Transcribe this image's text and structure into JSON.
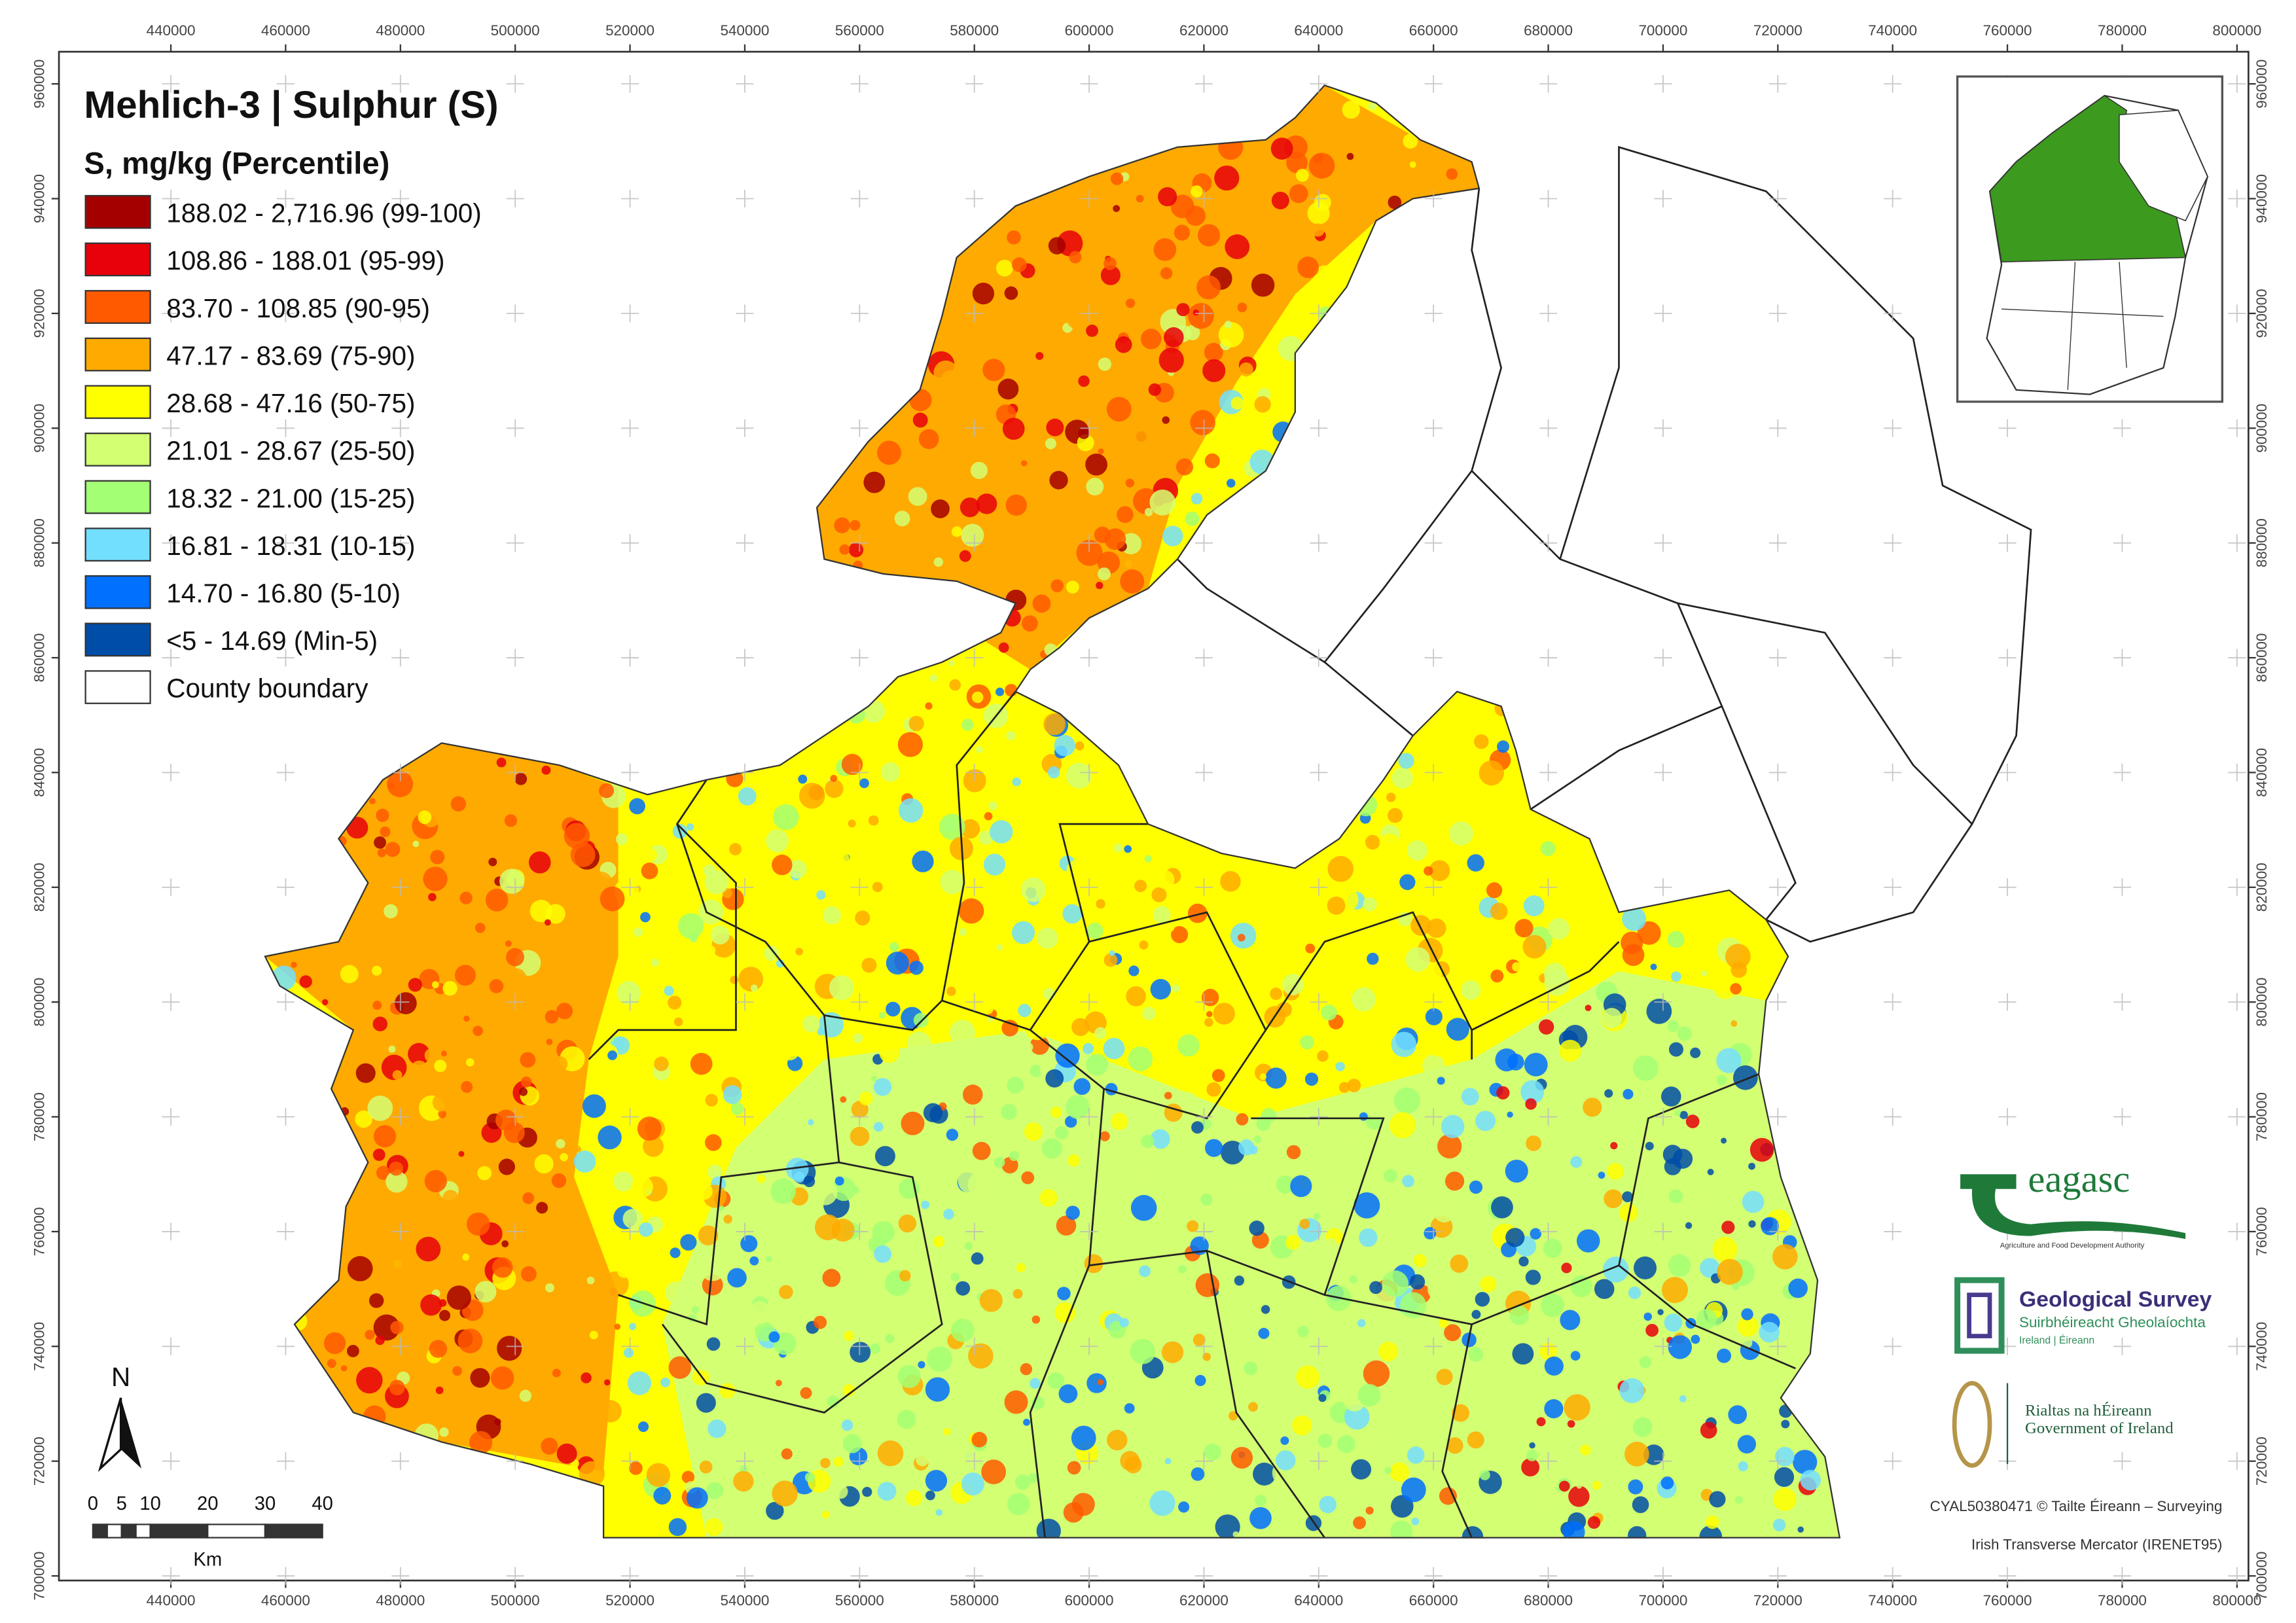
{
  "map": {
    "title": "Mehlich-3 | Sulphur (S)",
    "legend": {
      "title": "S, mg/kg (Percentile)",
      "items": [
        {
          "label": "188.02 - 2,716.96 (99-100)",
          "color": "#a50000"
        },
        {
          "label": "108.86 - 188.01 (95-99)",
          "color": "#e8000b"
        },
        {
          "label": "83.70 - 108.85 (90-95)",
          "color": "#ff5a00"
        },
        {
          "label": "47.17 - 83.69 (75-90)",
          "color": "#ffaa00"
        },
        {
          "label": "28.68 - 47.16 (50-75)",
          "color": "#ffff00"
        },
        {
          "label": "21.01 - 28.67 (25-50)",
          "color": "#d3ff73"
        },
        {
          "label": "18.32 - 21.00 (15-25)",
          "color": "#a3ff73"
        },
        {
          "label": "16.81 - 18.31 (10-15)",
          "color": "#73dfff"
        },
        {
          "label": "14.70 - 16.80 (5-10)",
          "color": "#0070ff"
        },
        {
          "label": "<5 - 14.69 (Min-5)",
          "color": "#004da8"
        },
        {
          "label": "County boundary",
          "color": "#ffffff"
        }
      ]
    },
    "xlim": [
      420500,
      802000
    ],
    "ylim": [
      699200,
      965600
    ],
    "x_ticks": [
      440000,
      460000,
      480000,
      500000,
      520000,
      540000,
      560000,
      580000,
      600000,
      620000,
      640000,
      660000,
      680000,
      700000,
      720000,
      740000,
      760000,
      780000,
      800000
    ],
    "y_ticks": [
      700000,
      720000,
      740000,
      760000,
      780000,
      800000,
      820000,
      840000,
      860000,
      880000,
      900000,
      920000,
      940000,
      960000
    ]
  },
  "north": "N",
  "scale_bar": {
    "labels": [
      0,
      5,
      10,
      20,
      30,
      40
    ],
    "unit": "Km"
  },
  "logos": {
    "teagasc": "eagasc",
    "teagasc_sub": "Agriculture and Food Development Authority",
    "gsi": "Geological Survey",
    "gsi_sub": "Suirbhéireacht Gheolaíochta",
    "gsi_sub2": "Ireland | Éireann",
    "gov_irish": "Rialtas na hÉireann",
    "gov_english": "Government of Ireland"
  },
  "credits": [
    "CYAL50380471 © Tailte Éireann – Surveying",
    "Irish Transverse Mercator (IRENET95)"
  ]
}
